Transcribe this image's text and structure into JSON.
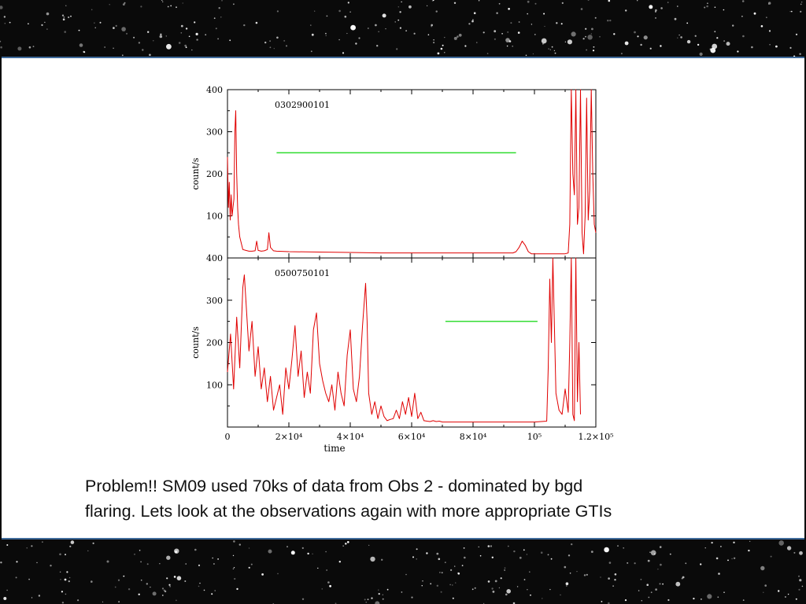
{
  "slide": {
    "caption_lines": [
      "Problem!! SM09 used 70ks of data from Obs 2  - dominated by bgd",
      "flaring. Lets look at the observations again with more appropriate GTIs"
    ]
  },
  "colors": {
    "curve": "#e00000",
    "gti": "#33dd33",
    "frame": "#000000",
    "slide_border": "#3f6a9a"
  },
  "chart_data": [
    {
      "type": "line",
      "panel": "top",
      "annotation": "0302900101",
      "xlabel": "",
      "ylabel": "count/s",
      "xlim": [
        0,
        120000
      ],
      "ylim": [
        0,
        400
      ],
      "yticks": [
        "400",
        "300",
        "200",
        "100"
      ],
      "gti": [
        16000,
        94000
      ],
      "gti_level": 250,
      "series": [
        {
          "x": [
            0,
            300,
            600,
            900,
            1200,
            1500,
            1800,
            2100,
            2400,
            2700,
            3000,
            3300,
            3600,
            4000,
            5000,
            6000,
            7000,
            8000,
            9000,
            9500,
            10000,
            11000,
            12000,
            13000,
            13500,
            14000,
            15000,
            16000,
            20000,
            30000,
            40000,
            50000,
            60000,
            70000,
            80000,
            90000,
            93000,
            94000,
            95000,
            96000,
            97000,
            98000,
            99000,
            100000,
            105000,
            110000,
            111000,
            111500,
            112000,
            112500,
            113000,
            113500,
            114000,
            114500,
            115000,
            115500,
            116000,
            116500,
            117000,
            117500,
            118000,
            118500,
            119000,
            119500,
            120000
          ],
          "y": [
            240,
            120,
            180,
            90,
            150,
            100,
            120,
            140,
            300,
            350,
            200,
            120,
            80,
            50,
            20,
            18,
            16,
            16,
            17,
            40,
            18,
            16,
            17,
            20,
            60,
            25,
            17,
            16,
            15,
            14,
            13,
            12,
            12,
            12,
            12,
            12,
            12,
            15,
            25,
            40,
            30,
            15,
            10,
            10,
            10,
            10,
            12,
            80,
            400,
            200,
            150,
            400,
            80,
            120,
            400,
            60,
            10,
            100,
            380,
            90,
            160,
            400,
            200,
            80,
            60
          ]
        }
      ]
    },
    {
      "type": "line",
      "panel": "bottom",
      "annotation": "0500750101",
      "xlabel": "time",
      "ylabel": "count/s",
      "xlim": [
        0,
        120000
      ],
      "ylim": [
        0,
        400
      ],
      "yticks": [
        "400",
        "300",
        "200",
        "100"
      ],
      "xticks": [
        {
          "value": 0,
          "label": "0"
        },
        {
          "value": 20000,
          "label": "2×10⁴"
        },
        {
          "value": 40000,
          "label": "4×10⁴"
        },
        {
          "value": 60000,
          "label": "6×10⁴"
        },
        {
          "value": 80000,
          "label": "8×10⁴"
        },
        {
          "value": 100000,
          "label": "10⁵"
        },
        {
          "value": 120000,
          "label": "1.2×10⁵"
        }
      ],
      "gti": [
        71000,
        101000
      ],
      "gti_level": 250,
      "series": [
        {
          "x": [
            0,
            1000,
            2000,
            3000,
            4000,
            5000,
            5500,
            6000,
            7000,
            8000,
            9000,
            10000,
            11000,
            12000,
            13000,
            14000,
            15000,
            16000,
            17000,
            18000,
            19000,
            20000,
            21000,
            22000,
            23000,
            24000,
            25000,
            26000,
            27000,
            28000,
            29000,
            30000,
            31000,
            32000,
            33000,
            34000,
            35000,
            36000,
            37000,
            38000,
            39000,
            40000,
            41000,
            42000,
            43000,
            44000,
            45000,
            45500,
            46000,
            47000,
            48000,
            49000,
            50000,
            51000,
            52000,
            53000,
            54000,
            55000,
            56000,
            57000,
            58000,
            59000,
            60000,
            61000,
            62000,
            63000,
            64000,
            65000,
            66000,
            67000,
            68000,
            69000,
            70000,
            75000,
            80000,
            85000,
            90000,
            95000,
            100000,
            104000,
            104500,
            105000,
            105500,
            106000,
            107000,
            108000,
            109000,
            110000,
            111000,
            111500,
            112000,
            112500,
            113000,
            113500,
            114000,
            114500,
            115000
          ],
          "y": [
            130,
            220,
            90,
            260,
            140,
            330,
            360,
            300,
            180,
            250,
            120,
            190,
            90,
            140,
            60,
            120,
            40,
            70,
            100,
            30,
            140,
            90,
            160,
            240,
            120,
            180,
            70,
            130,
            80,
            230,
            270,
            150,
            110,
            80,
            60,
            100,
            40,
            130,
            80,
            50,
            170,
            230,
            90,
            60,
            120,
            240,
            340,
            250,
            80,
            30,
            60,
            20,
            50,
            25,
            15,
            18,
            20,
            40,
            20,
            60,
            30,
            70,
            25,
            80,
            20,
            35,
            15,
            14,
            13,
            15,
            13,
            14,
            12,
            12,
            12,
            12,
            12,
            12,
            12,
            14,
            140,
            350,
            200,
            400,
            80,
            40,
            30,
            90,
            35,
            200,
            400,
            30,
            15,
            400,
            60,
            200,
            30
          ]
        }
      ]
    }
  ]
}
